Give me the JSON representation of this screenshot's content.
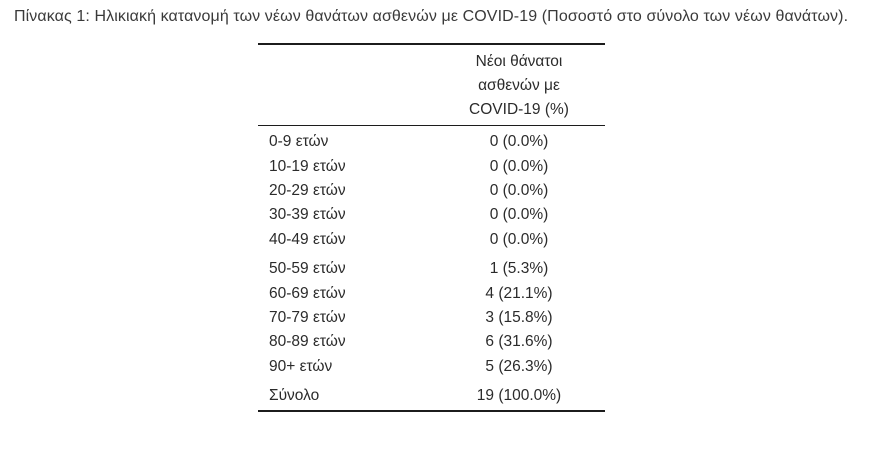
{
  "caption": "Πίνακας 1: Ηλικιακή κατανομή των νέων θανάτων ασθενών με COVID-19 (Ποσοστό στο σύνολο των νέων θανάτων).",
  "table": {
    "header_lines": [
      "Νέοι θάνατοι",
      "ασθενών με",
      "COVID-19 (%)"
    ],
    "groups": [
      {
        "rows": [
          {
            "label": "0-9 ετών",
            "value": "0 (0.0%)"
          },
          {
            "label": "10-19 ετών",
            "value": "0 (0.0%)"
          },
          {
            "label": "20-29 ετών",
            "value": "0 (0.0%)"
          },
          {
            "label": "30-39 ετών",
            "value": "0 (0.0%)"
          },
          {
            "label": "40-49 ετών",
            "value": "0 (0.0%)"
          }
        ]
      },
      {
        "rows": [
          {
            "label": "50-59 ετών",
            "value": "1 (5.3%)"
          },
          {
            "label": "60-69 ετών",
            "value": "4 (21.1%)"
          },
          {
            "label": "70-79 ετών",
            "value": "3 (15.8%)"
          },
          {
            "label": "80-89 ετών",
            "value": "6 (31.6%)"
          },
          {
            "label": "90+ ετών",
            "value": "5 (26.3%)"
          }
        ]
      }
    ],
    "total": {
      "label": "Σύνολο",
      "value": "19 (100.0%)"
    }
  },
  "colors": {
    "text": "#2b2b2b",
    "caption": "#3a3a3a",
    "rule": "#1c1c1c",
    "background": "#ffffff"
  }
}
